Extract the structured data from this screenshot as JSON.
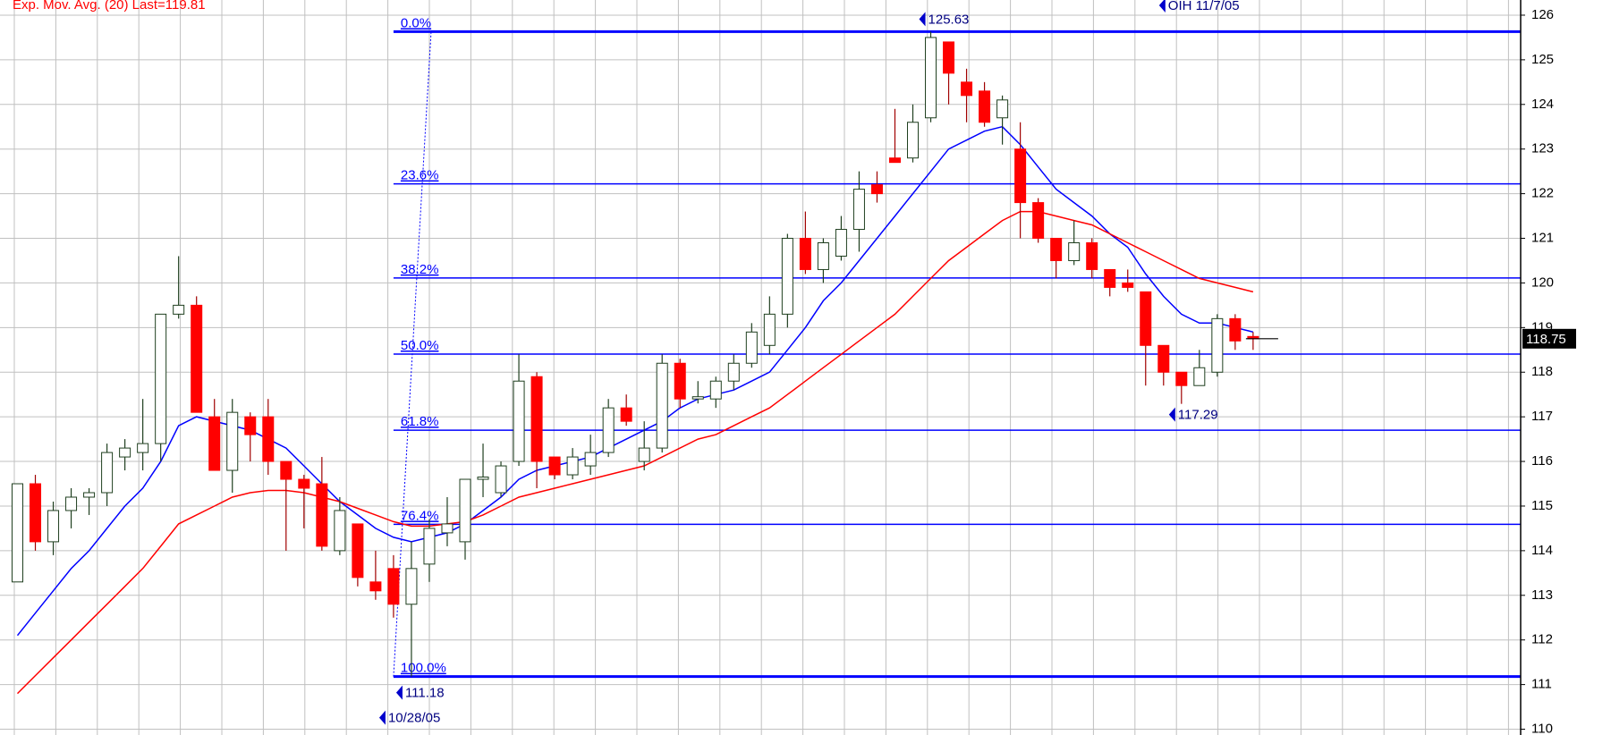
{
  "chart_data": {
    "type": "candlestick",
    "title": "Exp. Mov. Avg. (20) Last=119.81",
    "candles": {
      "open": [
        113.3,
        115.5,
        114.2,
        114.9,
        115.2,
        115.3,
        116.1,
        116.2,
        116.4,
        119.3,
        119.5,
        117.0,
        115.8,
        117.0,
        117.0,
        116.0,
        115.6,
        115.5,
        114.0,
        114.6,
        113.3,
        113.6,
        112.8,
        113.7,
        114.4,
        114.2,
        115.6,
        115.3,
        116.0,
        117.9,
        116.1,
        115.7,
        115.9,
        116.2,
        117.2,
        116.0,
        116.3,
        118.2,
        117.4,
        117.4,
        117.8,
        118.2,
        118.6,
        119.3,
        121.0,
        120.3,
        120.6,
        121.2,
        122.2,
        122.8,
        122.8,
        123.7,
        125.4,
        124.5,
        124.3,
        123.7,
        123.0,
        121.8,
        121.0,
        120.5,
        120.9,
        120.3,
        120.0,
        119.8,
        118.6,
        118.0,
        117.7,
        118.0,
        119.2,
        118.8
      ],
      "high": [
        115.5,
        115.7,
        115.1,
        115.4,
        115.4,
        116.4,
        116.5,
        117.4,
        119.3,
        120.6,
        119.7,
        117.4,
        117.4,
        117.1,
        117.4,
        116.0,
        115.7,
        116.1,
        115.2,
        114.6,
        114.0,
        113.9,
        114.2,
        114.7,
        115.2,
        115.6,
        116.4,
        116.0,
        118.4,
        118.0,
        116.1,
        116.3,
        116.6,
        117.4,
        117.5,
        116.9,
        118.4,
        118.3,
        117.8,
        117.9,
        118.4,
        119.1,
        119.7,
        121.1,
        121.6,
        121.0,
        121.5,
        122.5,
        122.5,
        123.9,
        124.0,
        125.63,
        125.4,
        124.8,
        124.5,
        124.2,
        123.6,
        121.9,
        121.0,
        121.4,
        121.0,
        120.3,
        120.3,
        119.8,
        118.6,
        118.0,
        118.5,
        119.3,
        119.3,
        118.9
      ],
      "low": [
        113.3,
        114.0,
        113.9,
        114.5,
        114.8,
        115.0,
        115.8,
        115.8,
        116.0,
        119.2,
        117.1,
        115.8,
        115.3,
        116.0,
        115.7,
        114.0,
        114.5,
        114.0,
        113.9,
        113.2,
        112.9,
        112.5,
        111.18,
        113.3,
        114.1,
        113.8,
        115.2,
        115.2,
        115.9,
        115.4,
        115.6,
        115.6,
        115.7,
        116.1,
        116.8,
        115.8,
        116.2,
        117.2,
        117.3,
        117.2,
        117.6,
        118.1,
        118.4,
        119.0,
        120.2,
        120.0,
        120.5,
        120.7,
        121.8,
        122.7,
        122.7,
        123.6,
        124.0,
        123.6,
        123.5,
        123.1,
        121.0,
        120.9,
        120.1,
        120.4,
        120.1,
        119.7,
        119.8,
        117.7,
        117.7,
        117.29,
        117.7,
        117.9,
        118.5,
        118.5
      ],
      "close": [
        115.5,
        114.2,
        114.9,
        115.2,
        115.3,
        116.2,
        116.3,
        116.4,
        119.3,
        119.5,
        117.1,
        115.8,
        117.1,
        116.6,
        116.0,
        115.6,
        115.4,
        114.1,
        114.9,
        113.4,
        113.1,
        112.8,
        113.6,
        114.5,
        114.6,
        115.6,
        115.65,
        115.9,
        117.8,
        116.0,
        115.7,
        116.1,
        116.2,
        117.2,
        116.9,
        116.3,
        118.2,
        117.4,
        117.45,
        117.8,
        118.2,
        118.9,
        119.3,
        121.0,
        120.3,
        120.9,
        121.2,
        122.1,
        122.0,
        122.7,
        123.6,
        125.5,
        124.7,
        124.2,
        123.6,
        124.1,
        121.8,
        121.0,
        120.5,
        120.9,
        120.3,
        119.9,
        119.9,
        118.6,
        118.0,
        117.7,
        118.1,
        119.2,
        118.7,
        118.75
      ]
    },
    "up_color": "#ffffff",
    "down_color": "#ff0000",
    "series": [
      {
        "color": "#0000ff",
        "values": [
          112.1,
          112.6,
          113.1,
          113.6,
          114.0,
          114.5,
          115.0,
          115.4,
          116.0,
          116.8,
          117.0,
          116.9,
          116.8,
          116.7,
          116.5,
          116.3,
          115.9,
          115.5,
          115.1,
          114.8,
          114.5,
          114.3,
          114.2,
          114.3,
          114.4,
          114.6,
          114.9,
          115.2,
          115.6,
          115.8,
          115.9,
          116.0,
          116.1,
          116.3,
          116.5,
          116.7,
          116.9,
          117.2,
          117.4,
          117.5,
          117.6,
          117.8,
          118.0,
          118.5,
          119.0,
          119.6,
          120.0,
          120.5,
          121.0,
          121.5,
          122.0,
          122.5,
          123.0,
          123.2,
          123.4,
          123.5,
          123.1,
          122.6,
          122.1,
          121.8,
          121.5,
          121.1,
          120.8,
          120.2,
          119.7,
          119.3,
          119.1,
          119.1,
          119.0,
          118.9
        ]
      },
      {
        "color": "#ff0000",
        "values": [
          110.8,
          111.2,
          111.6,
          112.0,
          112.4,
          112.8,
          113.2,
          113.6,
          114.1,
          114.6,
          114.8,
          115.0,
          115.2,
          115.3,
          115.35,
          115.35,
          115.3,
          115.2,
          115.1,
          114.95,
          114.8,
          114.65,
          114.55,
          114.55,
          114.6,
          114.65,
          114.8,
          115.0,
          115.2,
          115.3,
          115.4,
          115.5,
          115.6,
          115.7,
          115.8,
          115.9,
          116.1,
          116.3,
          116.5,
          116.6,
          116.8,
          117.0,
          117.2,
          117.5,
          117.8,
          118.1,
          118.4,
          118.7,
          119.0,
          119.3,
          119.7,
          120.1,
          120.5,
          120.8,
          121.1,
          121.4,
          121.6,
          121.6,
          121.5,
          121.4,
          121.3,
          121.1,
          120.9,
          120.7,
          120.5,
          120.3,
          120.1,
          120.0,
          119.9,
          119.8
        ]
      }
    ],
    "fib": {
      "color": "#0000ff",
      "levels": [
        125.63,
        122.22,
        120.11,
        118.405,
        116.7,
        114.59,
        111.18
      ],
      "labels": [
        "0.0%",
        "23.6%",
        "38.2%",
        "50.0%",
        "61.8%",
        "76.4%",
        "100.0%"
      ]
    },
    "annotations": [
      "125.63",
      "111.18",
      "10/28/05",
      "117.29",
      "OIH  11/7/05"
    ],
    "last_price": 118.75,
    "ylim": [
      109.87,
      126.34
    ],
    "yticks": [
      110,
      111,
      112,
      113,
      114,
      115,
      116,
      117,
      118,
      119,
      120,
      121,
      122,
      123,
      124,
      125,
      126
    ],
    "grid": true
  }
}
